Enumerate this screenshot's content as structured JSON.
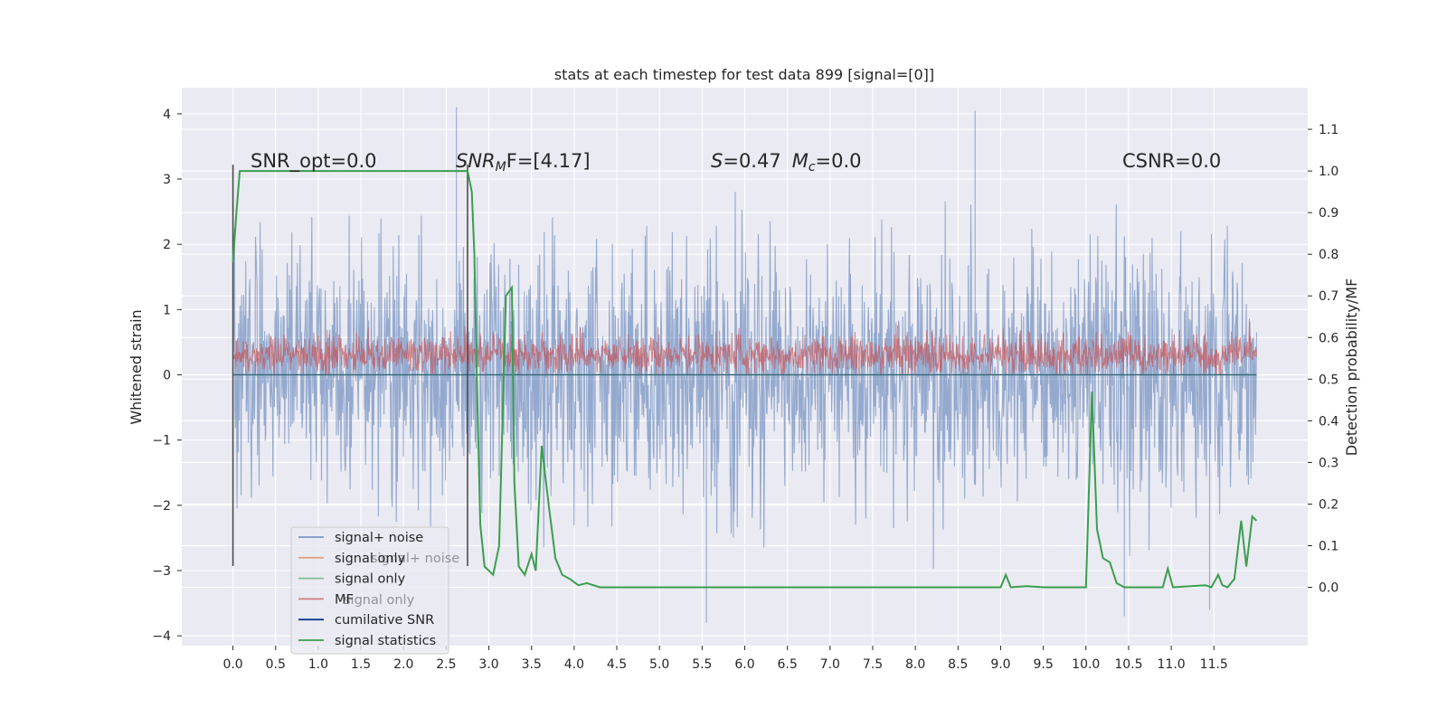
{
  "chart_data": {
    "type": "line",
    "title": "stats at each timestep for test data 899 [signal=[0]]",
    "xlabel": "",
    "ylabel": "Whitened strain",
    "y2label": "Detection probability/MF",
    "xlim": [
      -0.6,
      12.6
    ],
    "ylim": [
      -4.15,
      4.4
    ],
    "y2lim": [
      -0.14,
      1.2
    ],
    "x_ticks": [
      "0.0",
      "0.5",
      "1.0",
      "1.5",
      "2.0",
      "2.5",
      "3.0",
      "3.5",
      "4.0",
      "4.5",
      "5.0",
      "5.5",
      "6.0",
      "6.5",
      "7.0",
      "7.5",
      "8.0",
      "8.5",
      "9.0",
      "9.5",
      "10.0",
      "10.5",
      "11.0",
      "11.5"
    ],
    "y_ticks": [
      "4",
      "3",
      "2",
      "1",
      "0",
      "−1",
      "−2",
      "−3",
      "−4"
    ],
    "y2_ticks": [
      "1.1",
      "1.0",
      "0.9",
      "0.8",
      "0.7",
      "0.6",
      "0.5",
      "0.4",
      "0.3",
      "0.2",
      "0.1",
      "0.0"
    ],
    "grid": true,
    "legend_position": "lower-left",
    "annotations": {
      "snr_opt": "SNR_opt=0.0",
      "snr_mf_prefix": "SNR",
      "snr_mf_sub": "M",
      "snr_mf_suffix": "F=[4.17]",
      "s_label": "S",
      "s_value": "=0.47",
      "mc_label": "M",
      "mc_sub": "c",
      "mc_value": "=0.0",
      "csnr": "CSNR=0.0"
    },
    "legend_ghost": [
      "signal+ noise",
      "signal only"
    ],
    "series": [
      {
        "name": "signal+ noise",
        "color": "#4c72b0",
        "axis": "left",
        "x_range": [
          0.0,
          12.0
        ],
        "min": -3.8,
        "max": 4.1,
        "outliers": [
          {
            "x": 2.62,
            "y": 4.1
          },
          {
            "x": 8.7,
            "y": 4.05
          },
          {
            "x": 5.55,
            "y": -3.8
          },
          {
            "x": 10.45,
            "y": -3.7
          },
          {
            "x": 11.45,
            "y": -3.6
          }
        ]
      },
      {
        "name": "signal only",
        "color": "#dd8452",
        "axis": "left",
        "values": "zero"
      },
      {
        "name": "signal only",
        "color": "#55a868",
        "axis": "left",
        "values": "zero"
      },
      {
        "name": "MF",
        "color": "#c44e52",
        "axis": "left",
        "x_range": [
          0.0,
          12.0
        ],
        "min": 0.0,
        "max": 1.0
      },
      {
        "name": "cumilative SNR",
        "color": "#0b3a8a",
        "axis": "left",
        "values": "zero"
      },
      {
        "name": "signal statistics",
        "color": "#3a9e4e",
        "axis": "right",
        "points": [
          [
            0.0,
            0.78
          ],
          [
            0.04,
            0.9
          ],
          [
            0.08,
            1.0
          ],
          [
            0.2,
            1.0
          ],
          [
            2.75,
            1.0
          ],
          [
            2.8,
            0.95
          ],
          [
            2.83,
            0.8
          ],
          [
            2.86,
            0.5
          ],
          [
            2.9,
            0.15
          ],
          [
            2.95,
            0.05
          ],
          [
            3.05,
            0.03
          ],
          [
            3.12,
            0.1
          ],
          [
            3.2,
            0.7
          ],
          [
            3.27,
            0.72
          ],
          [
            3.3,
            0.25
          ],
          [
            3.35,
            0.05
          ],
          [
            3.42,
            0.03
          ],
          [
            3.5,
            0.08
          ],
          [
            3.55,
            0.04
          ],
          [
            3.62,
            0.34
          ],
          [
            3.7,
            0.2
          ],
          [
            3.78,
            0.07
          ],
          [
            3.86,
            0.03
          ],
          [
            3.95,
            0.02
          ],
          [
            4.05,
            0.005
          ],
          [
            4.15,
            0.01
          ],
          [
            4.3,
            0.0
          ],
          [
            9.0,
            0.0
          ],
          [
            9.06,
            0.03
          ],
          [
            9.12,
            0.0
          ],
          [
            9.3,
            0.003
          ],
          [
            9.5,
            0.0
          ],
          [
            10.0,
            0.0
          ],
          [
            10.07,
            0.47
          ],
          [
            10.13,
            0.14
          ],
          [
            10.2,
            0.07
          ],
          [
            10.28,
            0.06
          ],
          [
            10.36,
            0.01
          ],
          [
            10.45,
            0.0
          ],
          [
            10.9,
            0.0
          ],
          [
            10.96,
            0.045
          ],
          [
            11.02,
            0.0
          ],
          [
            11.4,
            0.005
          ],
          [
            11.47,
            0.0
          ],
          [
            11.55,
            0.03
          ],
          [
            11.6,
            0.005
          ],
          [
            11.66,
            0.0
          ],
          [
            11.74,
            0.02
          ],
          [
            11.82,
            0.16
          ],
          [
            11.88,
            0.05
          ],
          [
            11.95,
            0.17
          ],
          [
            12.0,
            0.16
          ]
        ]
      }
    ],
    "vlines": [
      {
        "x": 0.0,
        "y_top": 3.22,
        "y_bottom": -2.93,
        "color": "#4d4d4d"
      },
      {
        "x": 2.75,
        "y_top": 3.22,
        "y_bottom": -2.93,
        "color": "#4d4d4d"
      }
    ]
  }
}
